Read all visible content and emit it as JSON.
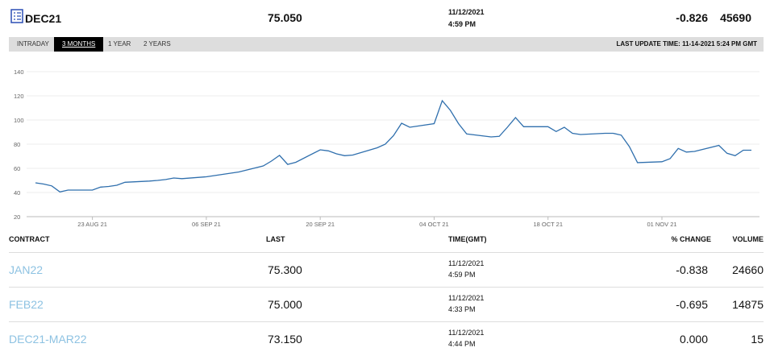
{
  "header": {
    "contract": "DEC21",
    "last": "75.050",
    "date": "11/12/2021",
    "time": "4:59 PM",
    "change": "-0.826",
    "volume": "45690"
  },
  "tabs": [
    "INTRADAY",
    "3 MONTHS",
    "1 YEAR",
    "2 YEARS"
  ],
  "active_tab": 1,
  "last_update": "LAST UPDATE TIME: 11-14-2021 5:24 PM GMT",
  "chart_data": {
    "type": "line",
    "color": "#2f6fad",
    "x": [
      "2021-08-16",
      "2021-08-17",
      "2021-08-18",
      "2021-08-19",
      "2021-08-20",
      "2021-08-23",
      "2021-08-24",
      "2021-08-25",
      "2021-08-26",
      "2021-08-27",
      "2021-08-30",
      "2021-08-31",
      "2021-09-01",
      "2021-09-02",
      "2021-09-03",
      "2021-09-06",
      "2021-09-07",
      "2021-09-08",
      "2021-09-09",
      "2021-09-10",
      "2021-09-13",
      "2021-09-14",
      "2021-09-15",
      "2021-09-16",
      "2021-09-17",
      "2021-09-20",
      "2021-09-21",
      "2021-09-22",
      "2021-09-23",
      "2021-09-24",
      "2021-09-27",
      "2021-09-28",
      "2021-09-29",
      "2021-09-30",
      "2021-10-01",
      "2021-10-04",
      "2021-10-05",
      "2021-10-06",
      "2021-10-07",
      "2021-10-08",
      "2021-10-11",
      "2021-10-12",
      "2021-10-13",
      "2021-10-14",
      "2021-10-15",
      "2021-10-18",
      "2021-10-19",
      "2021-10-20",
      "2021-10-21",
      "2021-10-22",
      "2021-10-25",
      "2021-10-26",
      "2021-10-27",
      "2021-10-28",
      "2021-10-29",
      "2021-11-01",
      "2021-11-02",
      "2021-11-03",
      "2021-11-04",
      "2021-11-05",
      "2021-11-08",
      "2021-11-09",
      "2021-11-10",
      "2021-11-11",
      "2021-11-12"
    ],
    "values": [
      48,
      47,
      45.5,
      40.5,
      42,
      42,
      44.5,
      45,
      46,
      48.5,
      49.5,
      50,
      50.7,
      52,
      51.5,
      53,
      54,
      55,
      56,
      57,
      62,
      66,
      70.7,
      63.3,
      65,
      75.3,
      74.5,
      72,
      70.5,
      71,
      77,
      80,
      87,
      97.3,
      94,
      97,
      116,
      108,
      97,
      88.5,
      86,
      86.5,
      94,
      102,
      94.5,
      94.5,
      90.5,
      94,
      89,
      88,
      89,
      89,
      87.5,
      78,
      64.7,
      65.5,
      68,
      76.5,
      73.5,
      74,
      79,
      72.5,
      70.5,
      75,
      75
    ],
    "xlim": [
      "2021-08-16",
      "2021-11-12"
    ],
    "xticks": [
      {
        "value": "2021-08-23",
        "label": "23 AUG 21"
      },
      {
        "value": "2021-09-06",
        "label": "06 SEP 21"
      },
      {
        "value": "2021-09-20",
        "label": "20 SEP 21"
      },
      {
        "value": "2021-10-04",
        "label": "04 OCT 21"
      },
      {
        "value": "2021-10-18",
        "label": "18 OCT 21"
      },
      {
        "value": "2021-11-01",
        "label": "01 NOV 21"
      }
    ],
    "ylim": [
      20,
      140
    ],
    "yticks": [
      20,
      40,
      60,
      80,
      100,
      120,
      140
    ],
    "grid": true
  },
  "table": {
    "columns": [
      "CONTRACT",
      "LAST",
      "TIME(GMT)",
      "% CHANGE",
      "VOLUME"
    ],
    "rows": [
      [
        "JAN22",
        "75.300",
        "11/12/2021",
        "4:59 PM",
        "-0.838",
        "24660"
      ],
      [
        "FEB22",
        "75.000",
        "11/12/2021",
        "4:33 PM",
        "-0.695",
        "14875"
      ],
      [
        "DEC21-MAR22",
        "73.150",
        "11/12/2021",
        "4:44 PM",
        "0.000",
        "15"
      ]
    ]
  }
}
